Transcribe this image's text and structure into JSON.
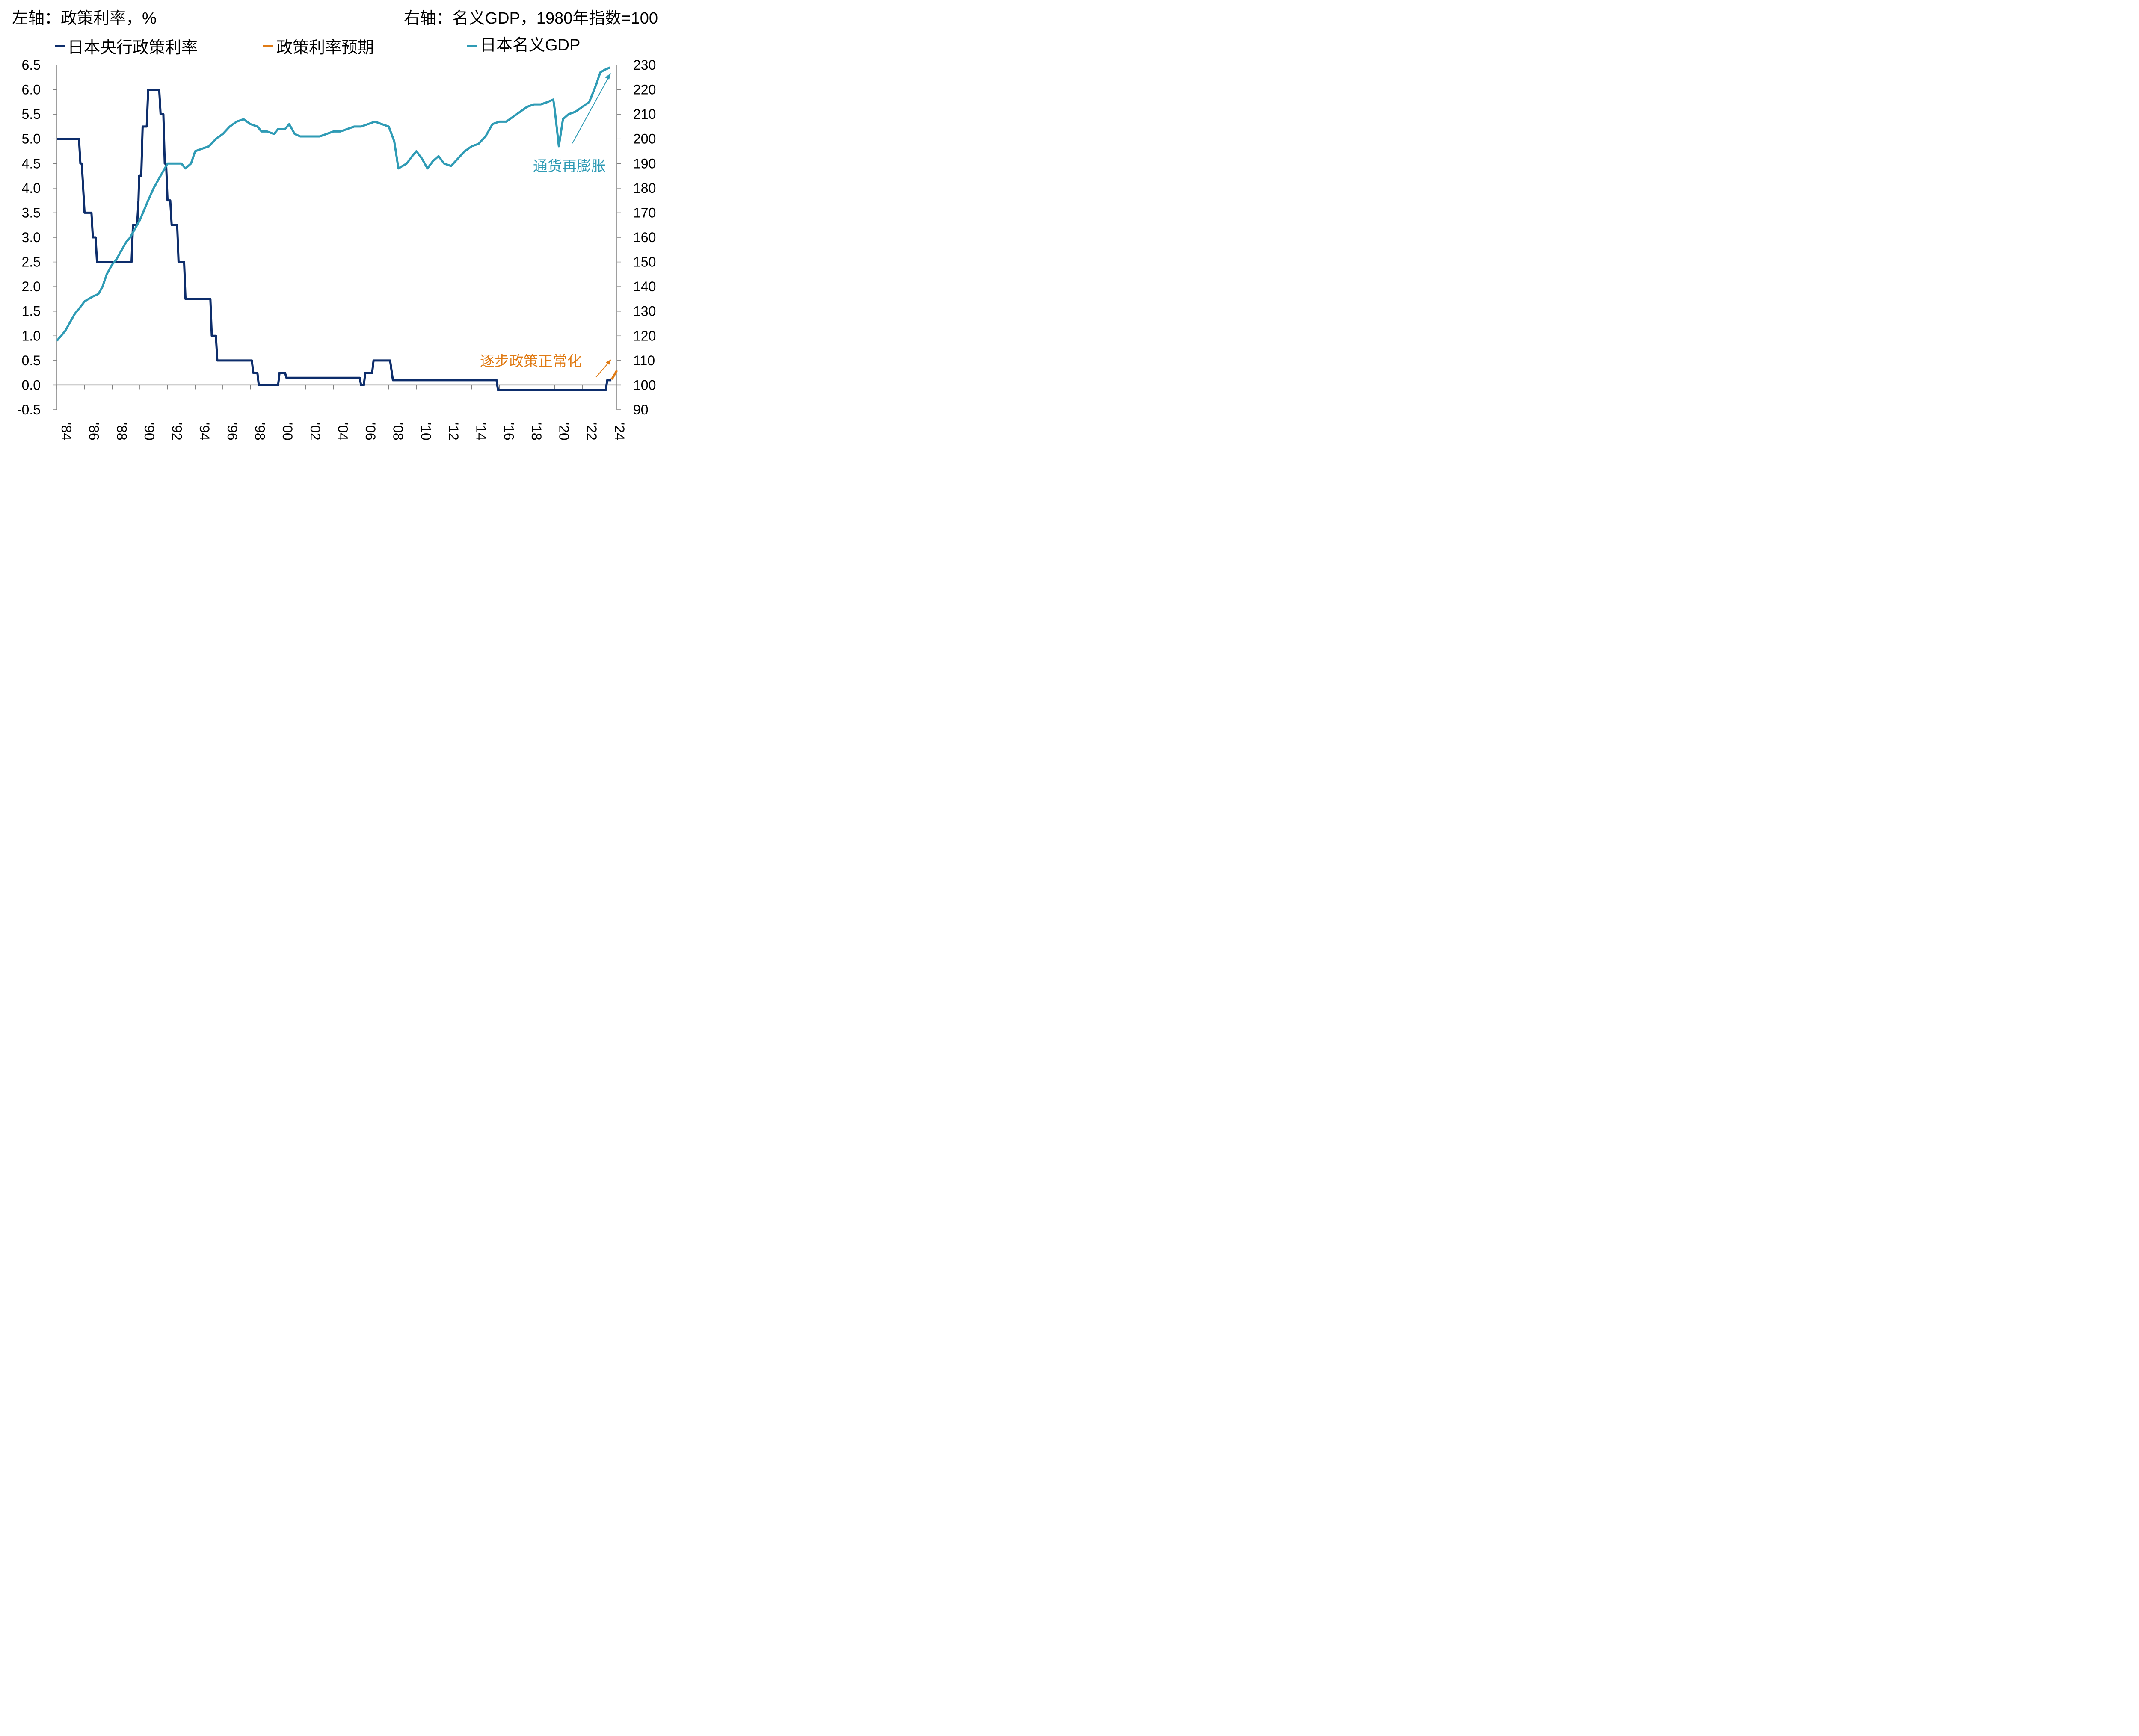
{
  "header": {
    "left_axis_note": "左轴：政策利率，%",
    "right_axis_note": "右轴：名义GDP，1980年指数=100"
  },
  "legend": [
    {
      "label": "日本央行政策利率",
      "color": "#0d2d6b"
    },
    {
      "label": "政策利率预期",
      "color": "#e07b15"
    },
    {
      "label": "日本名义GDP",
      "color": "#2f9bb5"
    }
  ],
  "annotations": {
    "reflation": "通货再膨胀",
    "normalization": "逐步政策正常化"
  },
  "chart_data": {
    "type": "line",
    "x_tick_labels": [
      "'84",
      "'86",
      "'88",
      "'90",
      "'92",
      "'94",
      "'96",
      "'98",
      "'00",
      "'02",
      "'04",
      "'06",
      "'08",
      "'10",
      "'12",
      "'14",
      "'16",
      "'18",
      "'20",
      "'22",
      "'24"
    ],
    "xlim": [
      1984,
      2024.5
    ],
    "left_axis": {
      "ylim": [
        -0.5,
        6.5
      ],
      "ticks": [
        "6.5",
        "6.0",
        "5.5",
        "5.0",
        "4.5",
        "4.0",
        "3.5",
        "3.0",
        "2.5",
        "2.0",
        "1.5",
        "1.0",
        "0.5",
        "0.0",
        "-0.5"
      ]
    },
    "right_axis": {
      "ylim": [
        90,
        230
      ],
      "ticks": [
        "230",
        "220",
        "210",
        "200",
        "190",
        "180",
        "170",
        "160",
        "150",
        "140",
        "130",
        "120",
        "110",
        "100",
        "90"
      ]
    },
    "series": [
      {
        "name": "日本央行政策利率",
        "axis": "left",
        "color": "#0d2d6b",
        "points": [
          [
            1984.0,
            5.0
          ],
          [
            1985.6,
            5.0
          ],
          [
            1985.7,
            4.5
          ],
          [
            1985.8,
            4.5
          ],
          [
            1986.0,
            3.5
          ],
          [
            1986.5,
            3.5
          ],
          [
            1986.6,
            3.0
          ],
          [
            1986.8,
            3.0
          ],
          [
            1986.9,
            2.5
          ],
          [
            1989.4,
            2.5
          ],
          [
            1989.5,
            3.25
          ],
          [
            1989.8,
            3.25
          ],
          [
            1989.9,
            3.75
          ],
          [
            1989.95,
            4.25
          ],
          [
            1990.1,
            4.25
          ],
          [
            1990.2,
            5.25
          ],
          [
            1990.5,
            5.25
          ],
          [
            1990.6,
            6.0
          ],
          [
            1991.4,
            6.0
          ],
          [
            1991.5,
            5.5
          ],
          [
            1991.7,
            5.5
          ],
          [
            1991.8,
            4.5
          ],
          [
            1991.9,
            4.5
          ],
          [
            1992.0,
            3.75
          ],
          [
            1992.2,
            3.75
          ],
          [
            1992.3,
            3.25
          ],
          [
            1992.7,
            3.25
          ],
          [
            1992.8,
            2.5
          ],
          [
            1993.2,
            2.5
          ],
          [
            1993.3,
            1.75
          ],
          [
            1995.1,
            1.75
          ],
          [
            1995.2,
            1.0
          ],
          [
            1995.5,
            1.0
          ],
          [
            1995.6,
            0.5
          ],
          [
            1998.1,
            0.5
          ],
          [
            1998.2,
            0.25
          ],
          [
            1998.5,
            0.25
          ],
          [
            1998.6,
            0.0
          ],
          [
            2000.0,
            0.0
          ],
          [
            2000.1,
            0.25
          ],
          [
            2000.5,
            0.25
          ],
          [
            2000.6,
            0.15
          ],
          [
            2005.9,
            0.15
          ],
          [
            2006.0,
            0.0
          ],
          [
            2006.2,
            0.0
          ],
          [
            2006.3,
            0.25
          ],
          [
            2006.8,
            0.25
          ],
          [
            2006.9,
            0.5
          ],
          [
            2008.1,
            0.5
          ],
          [
            2008.2,
            0.3
          ],
          [
            2008.3,
            0.1
          ],
          [
            2015.8,
            0.1
          ],
          [
            2015.9,
            -0.1
          ],
          [
            2023.7,
            -0.1
          ],
          [
            2023.8,
            0.1
          ],
          [
            2024.1,
            0.1
          ]
        ]
      },
      {
        "name": "政策利率预期",
        "axis": "left",
        "color": "#e07b15",
        "points": [
          [
            2024.1,
            0.12
          ],
          [
            2024.2,
            0.15
          ],
          [
            2024.3,
            0.2
          ],
          [
            2024.4,
            0.25
          ],
          [
            2024.5,
            0.3
          ]
        ]
      },
      {
        "name": "日本名义GDP",
        "axis": "right",
        "color": "#2f9bb5",
        "points": [
          [
            1984.0,
            118
          ],
          [
            1984.3,
            120
          ],
          [
            1984.6,
            122
          ],
          [
            1985.0,
            126
          ],
          [
            1985.3,
            129
          ],
          [
            1985.6,
            131
          ],
          [
            1986.0,
            134
          ],
          [
            1986.3,
            135
          ],
          [
            1986.6,
            136
          ],
          [
            1987.0,
            137
          ],
          [
            1987.3,
            140
          ],
          [
            1987.6,
            145
          ],
          [
            1988.0,
            149
          ],
          [
            1988.3,
            151
          ],
          [
            1988.6,
            154
          ],
          [
            1989.0,
            158
          ],
          [
            1989.3,
            160
          ],
          [
            1989.6,
            163
          ],
          [
            1990.0,
            167
          ],
          [
            1990.3,
            171
          ],
          [
            1990.6,
            175
          ],
          [
            1991.0,
            180
          ],
          [
            1991.3,
            183
          ],
          [
            1991.6,
            186
          ],
          [
            1992.0,
            190
          ],
          [
            1992.5,
            190
          ],
          [
            1993.0,
            190
          ],
          [
            1993.3,
            188
          ],
          [
            1993.7,
            190
          ],
          [
            1994.0,
            195
          ],
          [
            1994.5,
            196
          ],
          [
            1995.0,
            197
          ],
          [
            1995.5,
            200
          ],
          [
            1996.0,
            202
          ],
          [
            1996.5,
            205
          ],
          [
            1997.0,
            207
          ],
          [
            1997.5,
            208
          ],
          [
            1998.0,
            206
          ],
          [
            1998.5,
            205
          ],
          [
            1998.8,
            203
          ],
          [
            1999.2,
            203
          ],
          [
            1999.7,
            202
          ],
          [
            2000.0,
            204
          ],
          [
            2000.5,
            204
          ],
          [
            2000.8,
            206
          ],
          [
            2001.2,
            202
          ],
          [
            2001.6,
            201
          ],
          [
            2002.0,
            201
          ],
          [
            2002.5,
            201
          ],
          [
            2003.0,
            201
          ],
          [
            2003.5,
            202
          ],
          [
            2004.0,
            203
          ],
          [
            2004.5,
            203
          ],
          [
            2005.0,
            204
          ],
          [
            2005.5,
            205
          ],
          [
            2006.0,
            205
          ],
          [
            2006.5,
            206
          ],
          [
            2007.0,
            207
          ],
          [
            2007.5,
            206
          ],
          [
            2008.0,
            205
          ],
          [
            2008.4,
            199
          ],
          [
            2008.7,
            188
          ],
          [
            2009.0,
            189
          ],
          [
            2009.3,
            190
          ],
          [
            2009.7,
            193
          ],
          [
            2010.0,
            195
          ],
          [
            2010.4,
            192
          ],
          [
            2010.8,
            188
          ],
          [
            2011.2,
            191
          ],
          [
            2011.6,
            193
          ],
          [
            2012.0,
            190
          ],
          [
            2012.5,
            189
          ],
          [
            2013.0,
            192
          ],
          [
            2013.5,
            195
          ],
          [
            2014.0,
            197
          ],
          [
            2014.5,
            198
          ],
          [
            2015.0,
            201
          ],
          [
            2015.5,
            206
          ],
          [
            2016.0,
            207
          ],
          [
            2016.5,
            207
          ],
          [
            2017.0,
            209
          ],
          [
            2017.5,
            211
          ],
          [
            2018.0,
            213
          ],
          [
            2018.5,
            214
          ],
          [
            2019.0,
            214
          ],
          [
            2019.5,
            215
          ],
          [
            2019.9,
            216
          ],
          [
            2020.0,
            212
          ],
          [
            2020.3,
            197
          ],
          [
            2020.6,
            208
          ],
          [
            2021.0,
            210
          ],
          [
            2021.5,
            211
          ],
          [
            2022.0,
            213
          ],
          [
            2022.5,
            215
          ],
          [
            2023.0,
            222
          ],
          [
            2023.3,
            227
          ],
          [
            2023.6,
            228
          ],
          [
            2024.0,
            229
          ]
        ]
      }
    ]
  }
}
